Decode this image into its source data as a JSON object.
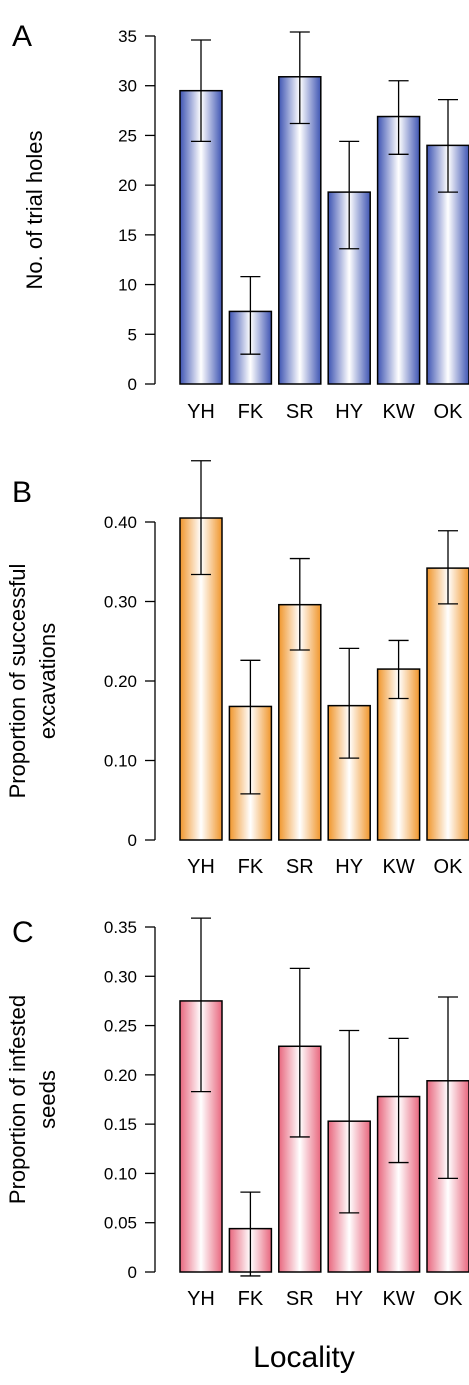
{
  "figure": {
    "xlabel": "Locality"
  },
  "chart_data": [
    {
      "type": "bar",
      "panel_label": "A",
      "ylabel": "No. of trial holes",
      "ylabel_lines": [
        "No. of trial holes"
      ],
      "categories": [
        "YH",
        "FK",
        "SR",
        "HY",
        "KW",
        "OK"
      ],
      "values": [
        29.5,
        7.3,
        30.9,
        19.3,
        26.9,
        24.0
      ],
      "err_lower": [
        24.4,
        3.0,
        26.2,
        13.6,
        23.1,
        19.3
      ],
      "err_upper": [
        34.6,
        10.8,
        35.4,
        24.4,
        30.5,
        28.6
      ],
      "ylim": [
        0,
        35
      ],
      "yticks": [
        0,
        5,
        10,
        15,
        20,
        25,
        30,
        35
      ],
      "ytick_labels": [
        "0",
        "5",
        "10",
        "15",
        "20",
        "25",
        "30",
        "35"
      ],
      "color": "#3f55b3",
      "color_light": "#ffffff"
    },
    {
      "type": "bar",
      "panel_label": "B",
      "ylabel": "Proportion of successful excavations",
      "ylabel_lines": [
        "Proportion of successful",
        "excavations"
      ],
      "categories": [
        "YH",
        "FK",
        "SR",
        "HY",
        "KW",
        "OK"
      ],
      "values": [
        0.405,
        0.168,
        0.296,
        0.169,
        0.215,
        0.342
      ],
      "err_lower": [
        0.334,
        0.058,
        0.239,
        0.103,
        0.178,
        0.297
      ],
      "err_upper": [
        0.477,
        0.226,
        0.354,
        0.241,
        0.251,
        0.389
      ],
      "ylim": [
        0,
        0.4
      ],
      "yticks": [
        0,
        0.1,
        0.2,
        0.3,
        0.4
      ],
      "ytick_labels": [
        "0",
        "0.10",
        "0.20",
        "0.30",
        "0.40"
      ],
      "color": "#f0962c",
      "color_light": "#ffffff"
    },
    {
      "type": "bar",
      "panel_label": "C",
      "ylabel": "Proportion of infested seeds",
      "ylabel_lines": [
        "Proportion of infested",
        "seeds"
      ],
      "categories": [
        "YH",
        "FK",
        "SR",
        "HY",
        "KW",
        "OK"
      ],
      "values": [
        0.275,
        0.044,
        0.229,
        0.153,
        0.178,
        0.194
      ],
      "err_lower": [
        0.183,
        -0.004,
        0.137,
        0.06,
        0.111,
        0.095
      ],
      "err_upper": [
        0.359,
        0.081,
        0.308,
        0.245,
        0.237,
        0.279
      ],
      "ylim": [
        0,
        0.35
      ],
      "yticks": [
        0,
        0.05,
        0.1,
        0.15,
        0.2,
        0.25,
        0.3,
        0.35
      ],
      "ytick_labels": [
        "0",
        "0.05",
        "0.10",
        "0.15",
        "0.20",
        "0.25",
        "0.30",
        "0.35"
      ],
      "color": "#e8677e",
      "color_light": "#ffffff"
    }
  ]
}
